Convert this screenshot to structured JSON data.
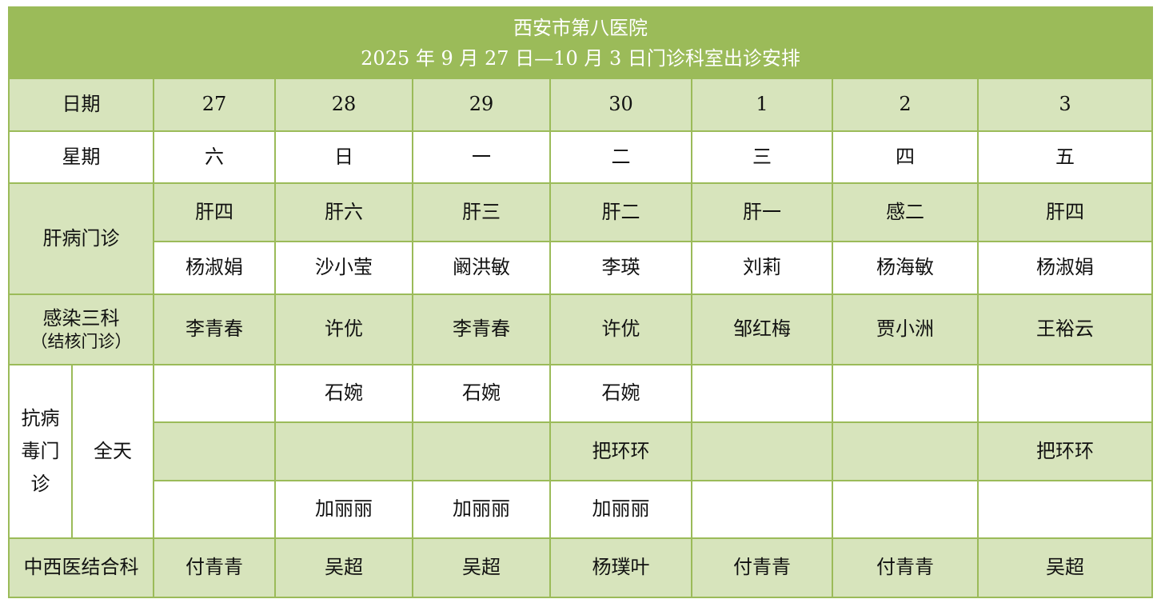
{
  "title": {
    "line1": "西安市第八医院",
    "line2": "2025 年 9 月 27 日—10 月 3 日门诊科室出诊安排"
  },
  "colors": {
    "header": "#9bbb59",
    "light_row": "#d7e4bc",
    "border": "#9bbb59"
  },
  "date_row": {
    "label": "日期",
    "values": [
      "27",
      "28",
      "29",
      "30",
      "1",
      "2",
      "3"
    ]
  },
  "weekday_row": {
    "label": "星期",
    "values": [
      "六",
      "日",
      "一",
      "二",
      "三",
      "四",
      "五"
    ]
  },
  "liver": {
    "label": "肝病门诊",
    "rooms": [
      "肝四",
      "肝六",
      "肝三",
      "肝二",
      "肝一",
      "感二",
      "肝四"
    ],
    "doctors": [
      "杨淑娟",
      "沙小莹",
      "阚洪敏",
      "李瑛",
      "刘莉",
      "杨海敏",
      "杨淑娟"
    ]
  },
  "infection": {
    "label": "感染三科",
    "sublabel": "（结核门诊）",
    "doctors": [
      "李青春",
      "许优",
      "李青春",
      "许优",
      "邹红梅",
      "贾小洲",
      "王裕云"
    ]
  },
  "antiviral": {
    "label": "抗病毒门诊",
    "session": "全天",
    "rows": [
      [
        "",
        "石婉",
        "石婉",
        "石婉",
        "",
        "",
        ""
      ],
      [
        "",
        "",
        "",
        "把环环",
        "",
        "",
        "把环环"
      ],
      [
        "",
        "加丽丽",
        "加丽丽",
        "加丽丽",
        "",
        "",
        ""
      ]
    ]
  },
  "combined": {
    "label": "中西医结合科",
    "doctors": [
      "付青青",
      "吴超",
      "吴超",
      "杨璞叶",
      "付青青",
      "付青青",
      "吴超"
    ]
  }
}
